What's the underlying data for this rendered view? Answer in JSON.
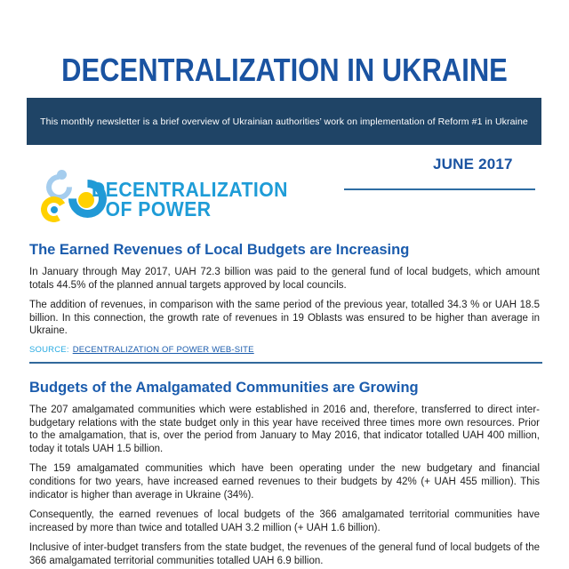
{
  "page": {
    "title": "DECENTRALIZATION IN UKRAINE",
    "banner_text": "This monthly newsletter is a brief overview of Ukrainian authorities’ work on implementation of Reform #1 in Ukraine",
    "issue_date": "JUNE 2017"
  },
  "logo": {
    "line1": "DECENTRALIZATION",
    "line2": "OF POWER"
  },
  "sections": [
    {
      "heading": "The Earned Revenues of Local Budgets are Increasing",
      "paragraphs": [
        "In January through May 2017, UAH 72.3 billion was paid to the general fund of local budgets, which amount totals 44.5% of the planned annual targets approved by local councils.",
        "The addition of revenues, in comparison with the same period of the previous year, totalled 34.3 % or UAH 18.5 billion. In this connection, the growth rate of revenues in 19 Oblasts was ensured to be higher than average in Ukraine."
      ],
      "source_label": "SOURCE:",
      "source_link": "DECENTRALIZATION OF POWER WEB-SITE"
    },
    {
      "heading": "Budgets of the Amalgamated Communities are Growing",
      "paragraphs": [
        "The 207 amalgamated communities which were established in 2016 and, therefore, transferred to direct inter-budgetary relations with the state budget only in this year have received three times more own resources. Prior to the amalgamation, that is, over the period from January to May 2016, that indicator totalled UAH 400 million, today it totals UAH 1.5 billion.",
        "The 159 amalgamated communities which have been operating under the new budgetary and financial conditions for two years, have increased earned revenues to their budgets by 42% (+ UAH 455 million). This indicator is higher than average in Ukraine (34%).",
        "Consequently, the earned revenues of local budgets of the 366 amalgamated territorial communities have increased by more than twice and totalled UAH 3.2 million (+ UAH 1.6 billion).",
        "Inclusive of inter-budget transfers from the state budget, the revenues of the general fund of local budgets of the 366 amalgamated territorial communities totalled UAH 6.9 billion."
      ]
    }
  ],
  "colors": {
    "title_blue": "#1a53a1",
    "heading_blue": "#1b5cad",
    "banner_navy": "#1f4466",
    "logo_blue": "#1e9cd7",
    "logo_light_blue": "#a5cdee",
    "logo_yellow": "#ffd100",
    "source_label_blue": "#29abe2",
    "rule_blue": "#31689b"
  }
}
